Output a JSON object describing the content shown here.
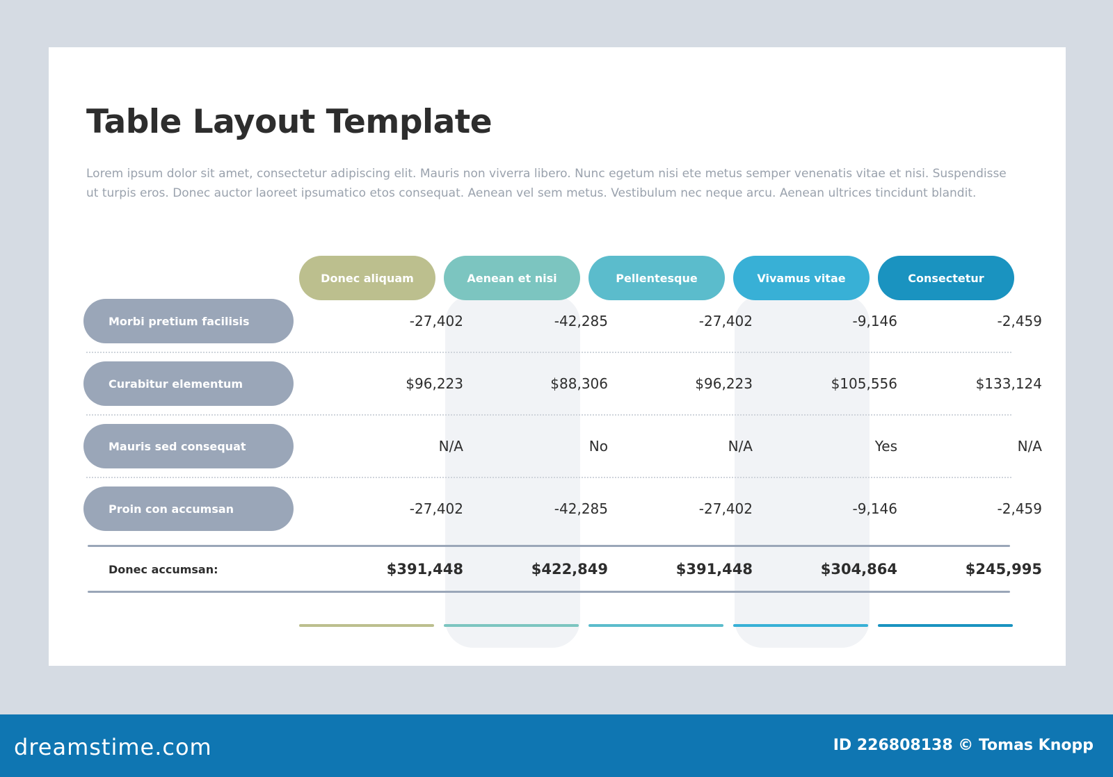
{
  "title": "Table Layout Template",
  "description": "Lorem ipsum dolor sit amet, consectetur adipiscing elit. Mauris non viverra libero. Nunc egetum nisi ete metus semper venenatis vitae et nisi. Suspendisse ut turpis eros. Donec auctor laoreet ipsumatico etos consequat. Aenean vel sem metus. Vestibulum nec neque arcu. Aenean ultrices tincidunt blandit.",
  "columns": [
    {
      "label": "Donec aliquam",
      "color": "#bcbf8e"
    },
    {
      "label": "Aenean et nisi",
      "color": "#7cc5c0"
    },
    {
      "label": "Pellentesque",
      "color": "#5bbccc"
    },
    {
      "label": "Vivamus vitae",
      "color": "#38b0d6"
    },
    {
      "label": "Consectetur",
      "color": "#1a93c0"
    }
  ],
  "rows": [
    {
      "label": "Morbi pretium facilisis",
      "values": [
        "-27,402",
        "-42,285",
        "-27,402",
        "-9,146",
        "-2,459"
      ]
    },
    {
      "label": "Curabitur elementum",
      "values": [
        "$96,223",
        "$88,306",
        "$96,223",
        "$105,556",
        "$133,124"
      ]
    },
    {
      "label": "Mauris sed consequat",
      "values": [
        "N/A",
        "No",
        "N/A",
        "Yes",
        "N/A"
      ]
    },
    {
      "label": "Proin con accumsan",
      "values": [
        "-27,402",
        "-42,285",
        "-27,402",
        "-9,146",
        "-2,459"
      ]
    }
  ],
  "total": {
    "label": "Donec accumsan:",
    "values": [
      "$391,448",
      "$422,849",
      "$391,448",
      "$304,864",
      "$245,995"
    ]
  },
  "footer": {
    "brand": "dreamstime.com",
    "credit": "ID 226808138 © Tomas Knopp",
    "background": "#0f76b2"
  }
}
